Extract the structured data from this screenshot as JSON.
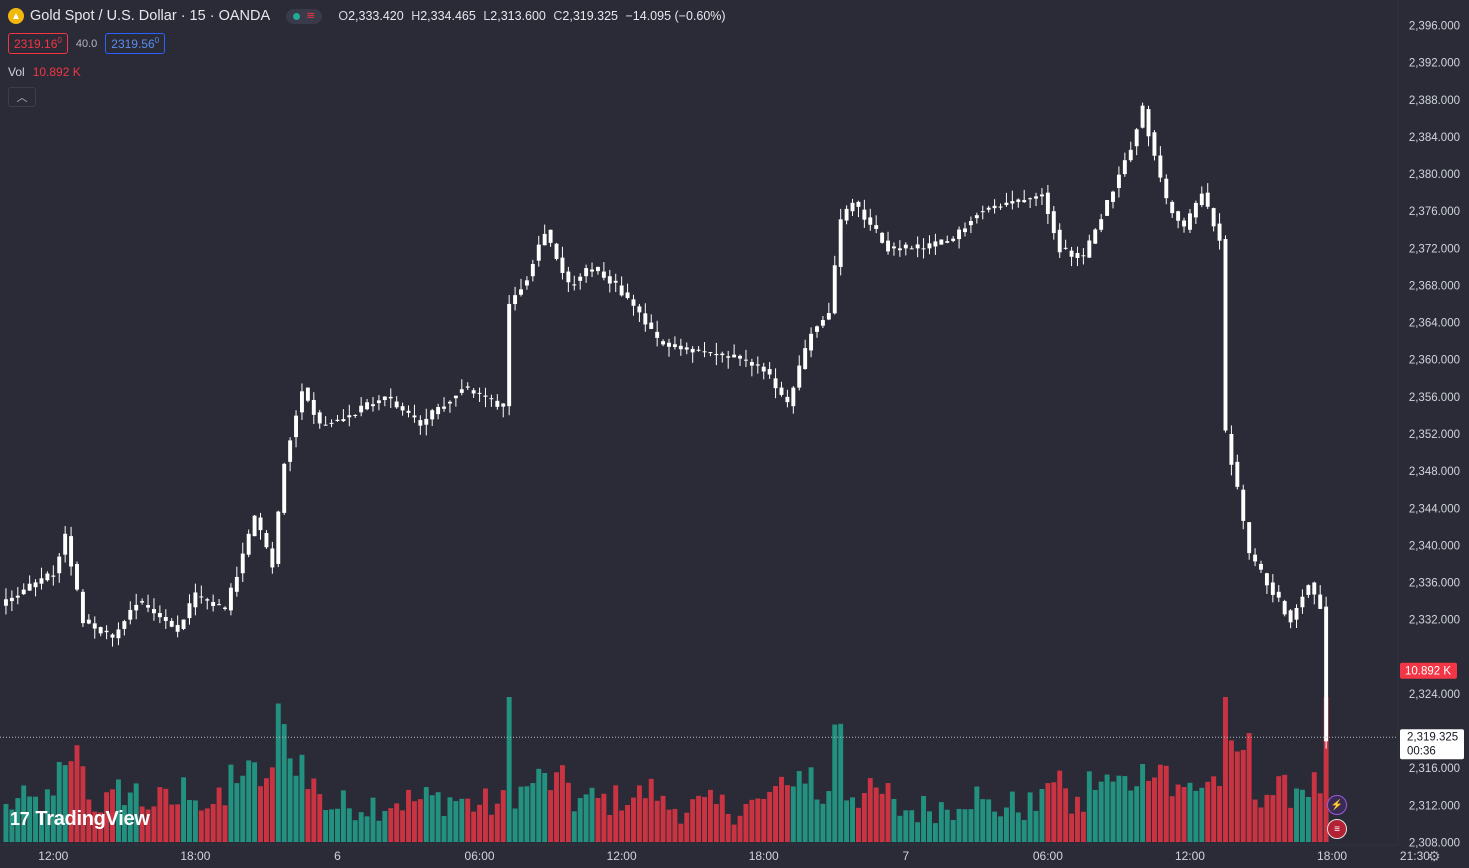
{
  "header": {
    "symbol_title": "Gold Spot / U.S. Dollar · 15 · OANDA",
    "symbol_icon": "gold-coin-icon",
    "open_label": "O",
    "open_value": "2,333.420",
    "high_label": "H",
    "high_value": "2,334.465",
    "low_label": "L",
    "low_value": "2,313.600",
    "close_label": "C",
    "close_value": "2,319.325",
    "change": "−14.095 (−0.60%)"
  },
  "trade": {
    "sell": "2319.16",
    "sell_sup": "0",
    "spread": "40.0",
    "buy": "2319.56",
    "buy_sup": "0"
  },
  "volume_legend": {
    "label": "Vol",
    "value": "10.892 K"
  },
  "brand": {
    "logo_text": "TradingView",
    "mark": "17"
  },
  "colors": {
    "up": "#22ab94",
    "down": "#f23645",
    "candle": "#ffffff",
    "background": "#2a2b36"
  },
  "chart_data": {
    "type": "candlestick",
    "title": "Gold Spot / U.S. Dollar · 15 · OANDA",
    "y_axis": {
      "ylim": [
        2306,
        2398
      ],
      "ticks": [
        "2,396.000",
        "2,392.000",
        "2,388.000",
        "2,384.000",
        "2,380.000",
        "2,376.000",
        "2,372.000",
        "2,368.000",
        "2,364.000",
        "2,360.000",
        "2,356.000",
        "2,352.000",
        "2,348.000",
        "2,344.000",
        "2,340.000",
        "2,336.000",
        "2,332.000",
        "2,324.000",
        "2,316.000",
        "2,312.000",
        "2,308.000"
      ],
      "tick_values": [
        2396,
        2392,
        2388,
        2384,
        2380,
        2376,
        2372,
        2368,
        2364,
        2360,
        2356,
        2352,
        2348,
        2344,
        2340,
        2336,
        2332,
        2324,
        2316,
        2312,
        2308
      ]
    },
    "x_axis": {
      "ticks": [
        "12:00",
        "18:00",
        "6",
        "06:00",
        "12:00",
        "18:00",
        "7",
        "06:00",
        "12:00",
        "18:00",
        "21:30"
      ],
      "tick_bar_index": [
        8,
        32,
        56,
        80,
        104,
        128,
        152,
        176,
        200,
        224,
        238
      ]
    },
    "last_price": {
      "value": 2319.325,
      "label": "2,319.325",
      "countdown": "00:36"
    },
    "volume_badge": "10.892 K",
    "price_path": [
      {
        "bar": 0,
        "price": 2334.0
      },
      {
        "bar": 8,
        "price": 2337.0
      },
      {
        "bar": 10,
        "price": 2341.0
      },
      {
        "bar": 13,
        "price": 2332.0
      },
      {
        "bar": 18,
        "price": 2330.0
      },
      {
        "bar": 22,
        "price": 2334.0
      },
      {
        "bar": 29,
        "price": 2331.0
      },
      {
        "bar": 32,
        "price": 2334.5
      },
      {
        "bar": 37,
        "price": 2333.0
      },
      {
        "bar": 42,
        "price": 2343.0
      },
      {
        "bar": 45,
        "price": 2338.0
      },
      {
        "bar": 47,
        "price": 2349.0
      },
      {
        "bar": 50,
        "price": 2357.0
      },
      {
        "bar": 53,
        "price": 2353.0
      },
      {
        "bar": 58,
        "price": 2354.0
      },
      {
        "bar": 64,
        "price": 2356.0
      },
      {
        "bar": 70,
        "price": 2353.0
      },
      {
        "bar": 77,
        "price": 2357.0
      },
      {
        "bar": 84,
        "price": 2355.0
      },
      {
        "bar": 85,
        "price": 2366.0
      },
      {
        "bar": 88,
        "price": 2369.0
      },
      {
        "bar": 91,
        "price": 2374.0
      },
      {
        "bar": 95,
        "price": 2368.0
      },
      {
        "bar": 99,
        "price": 2370.0
      },
      {
        "bar": 103,
        "price": 2368.0
      },
      {
        "bar": 107,
        "price": 2365.0
      },
      {
        "bar": 110,
        "price": 2362.0
      },
      {
        "bar": 116,
        "price": 2361.0
      },
      {
        "bar": 124,
        "price": 2360.0
      },
      {
        "bar": 128,
        "price": 2359.0
      },
      {
        "bar": 132,
        "price": 2355.0
      },
      {
        "bar": 136,
        "price": 2363.0
      },
      {
        "bar": 139,
        "price": 2365.0
      },
      {
        "bar": 141,
        "price": 2375.0
      },
      {
        "bar": 143,
        "price": 2377.0
      },
      {
        "bar": 149,
        "price": 2372.0
      },
      {
        "bar": 155,
        "price": 2372.0
      },
      {
        "bar": 160,
        "price": 2373.0
      },
      {
        "bar": 164,
        "price": 2376.0
      },
      {
        "bar": 170,
        "price": 2377.0
      },
      {
        "bar": 175,
        "price": 2378.0
      },
      {
        "bar": 178,
        "price": 2372.0
      },
      {
        "bar": 182,
        "price": 2371.0
      },
      {
        "bar": 186,
        "price": 2377.0
      },
      {
        "bar": 190,
        "price": 2383.0
      },
      {
        "bar": 192,
        "price": 2387.0
      },
      {
        "bar": 194,
        "price": 2382.0
      },
      {
        "bar": 196,
        "price": 2377.0
      },
      {
        "bar": 199,
        "price": 2374.0
      },
      {
        "bar": 202,
        "price": 2378.0
      },
      {
        "bar": 205,
        "price": 2373.0
      },
      {
        "bar": 206,
        "price": 2352.0
      },
      {
        "bar": 208,
        "price": 2346.0
      },
      {
        "bar": 210,
        "price": 2339.0
      },
      {
        "bar": 213,
        "price": 2336.0
      },
      {
        "bar": 217,
        "price": 2332.0
      },
      {
        "bar": 220,
        "price": 2336.0
      },
      {
        "bar": 222,
        "price": 2333.4
      },
      {
        "bar": 223,
        "price": 2319.3
      }
    ]
  }
}
